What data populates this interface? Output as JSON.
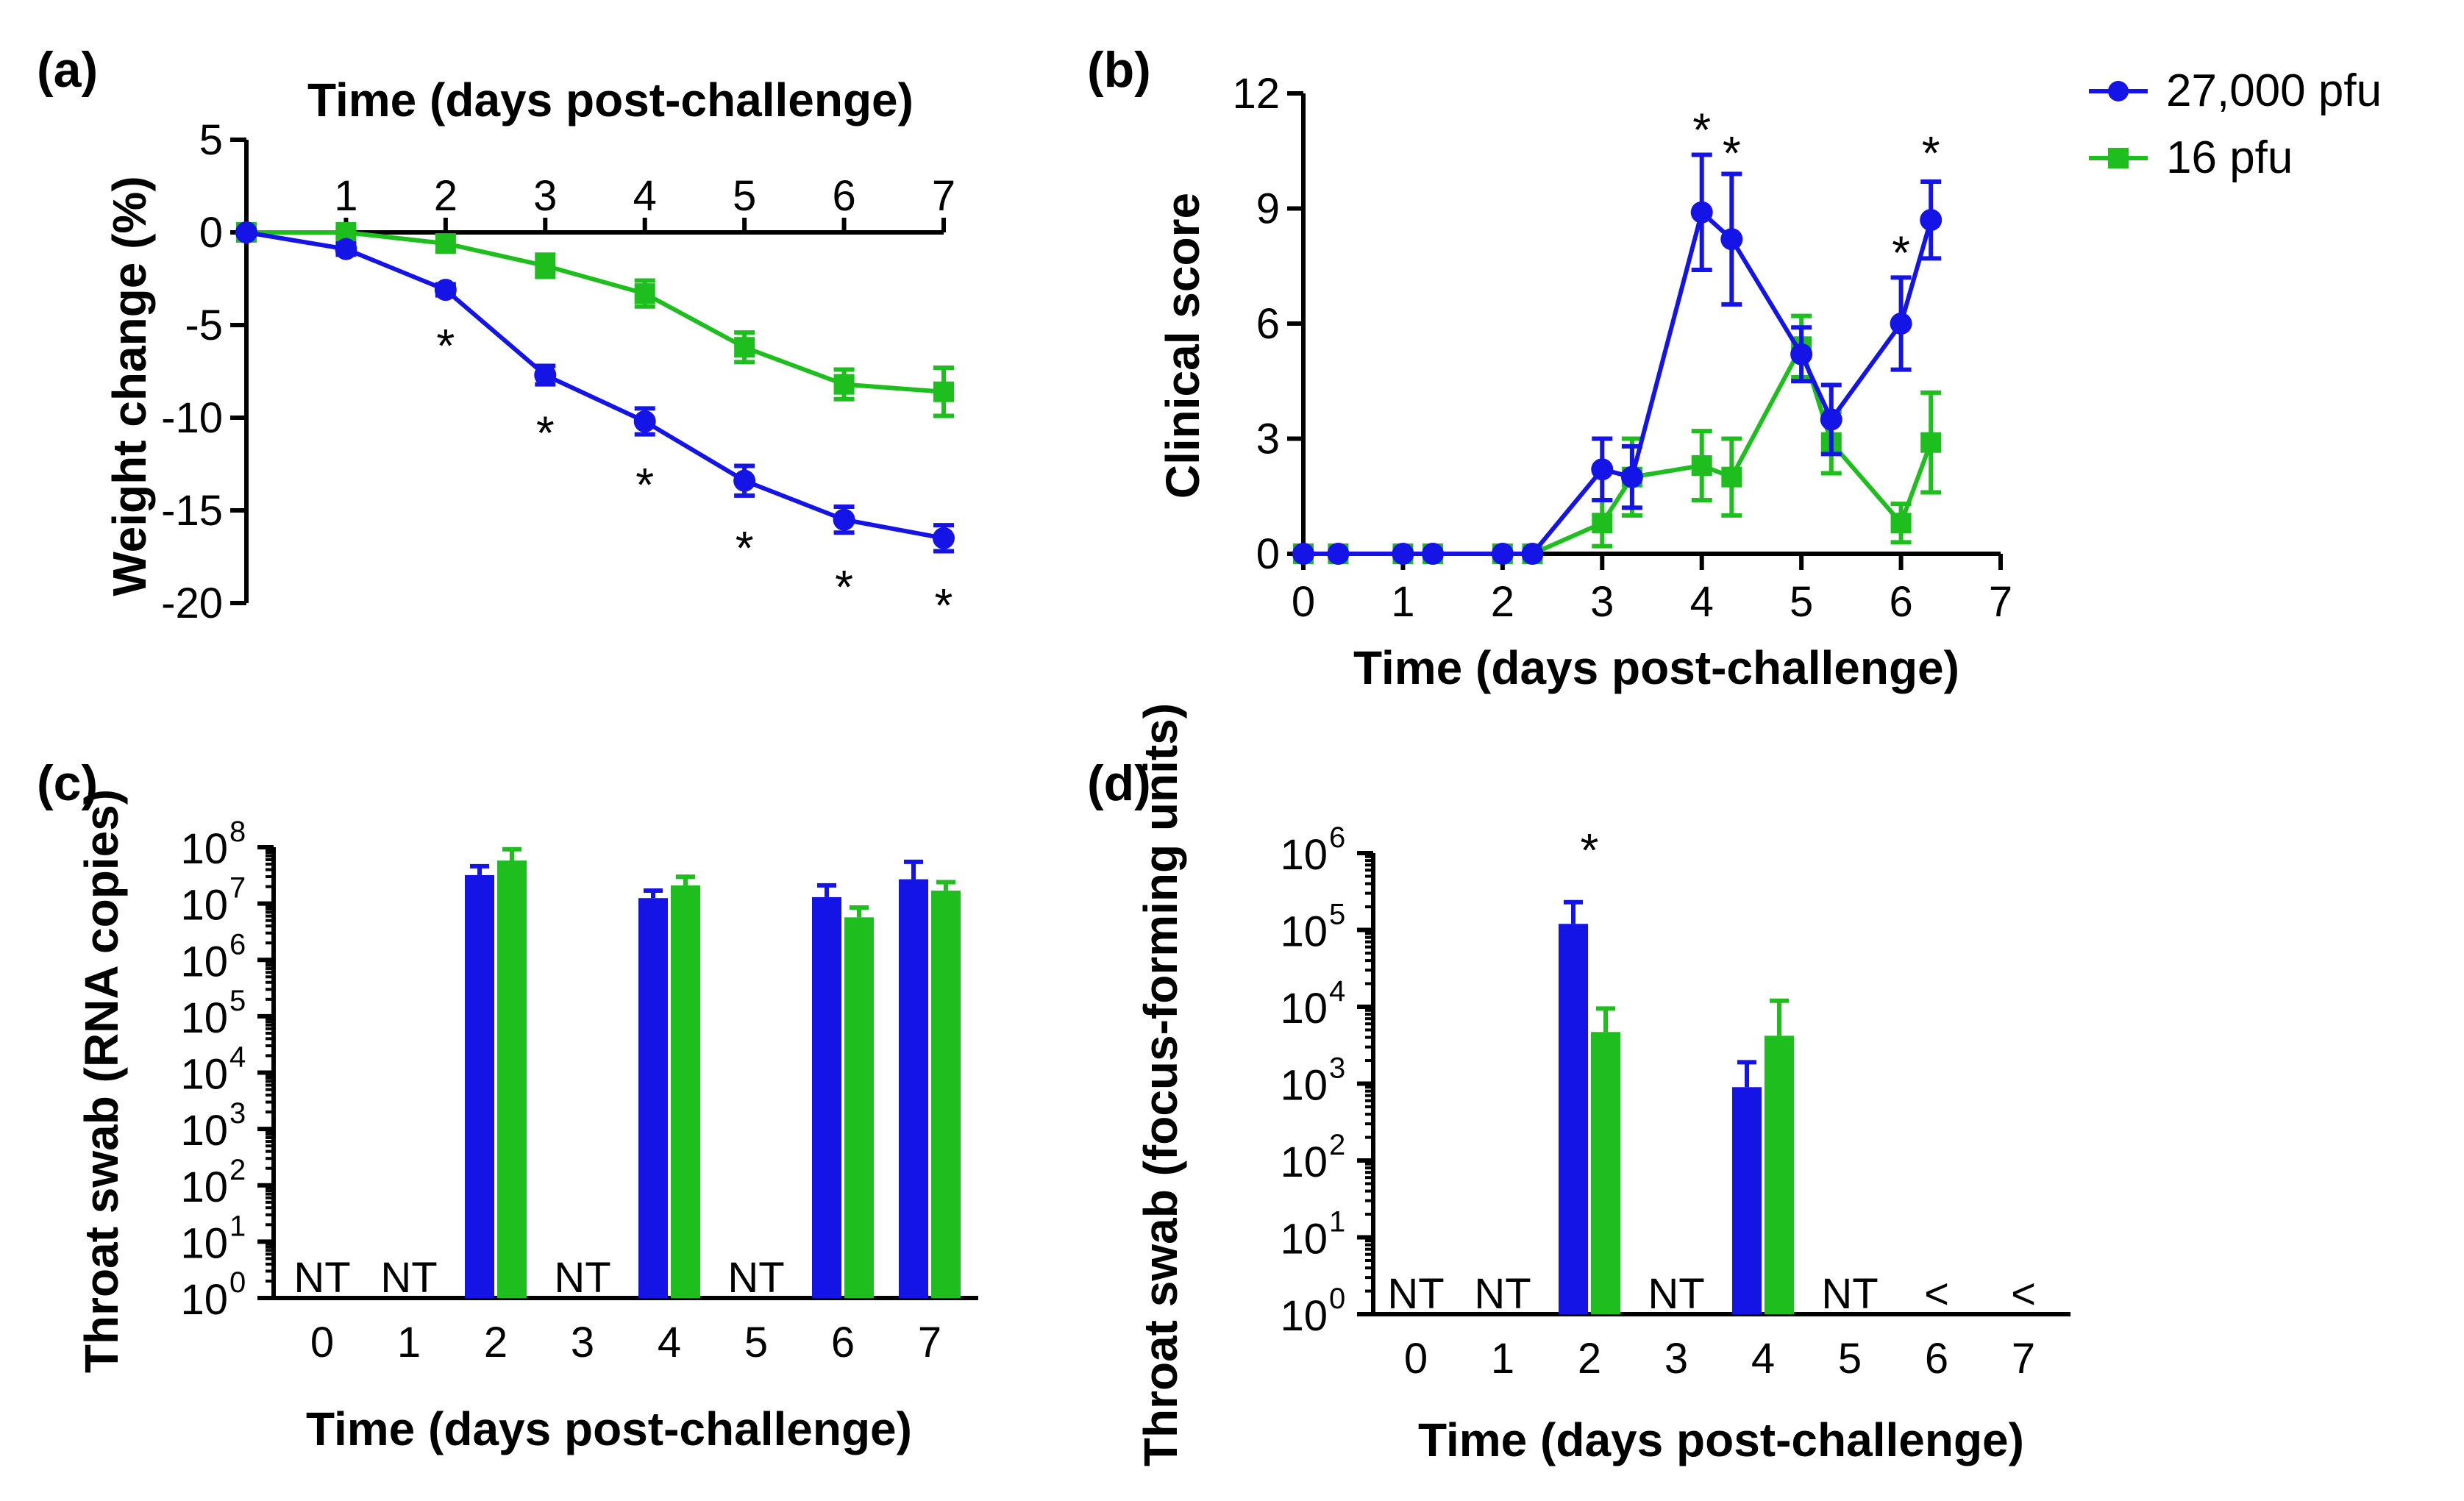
{
  "colors": {
    "high_dose": "#1414e6",
    "low_dose": "#1ebe1e",
    "axis": "#000000"
  },
  "legend": [
    {
      "label": "27,000 pfu",
      "marker": "circle",
      "color": "#1414e6"
    },
    {
      "label": "16 pfu",
      "marker": "square",
      "color": "#1ebe1e"
    }
  ],
  "chart_data": [
    {
      "panel": "(a)",
      "type": "line",
      "title": "",
      "xlabel": "Time (days post-challenge)",
      "ylabel": "Weight change (%)",
      "x_axis_position": "top",
      "xlim": [
        0,
        7
      ],
      "ylim": [
        -20,
        5
      ],
      "xticks": [
        "1",
        "2",
        "3",
        "4",
        "5",
        "6",
        "7"
      ],
      "yticks": [
        "5",
        "0",
        "-5",
        "-10",
        "-15",
        "-20"
      ],
      "series": [
        {
          "name": "27,000 pfu",
          "x": [
            0,
            1,
            2,
            3,
            4,
            5,
            6,
            7
          ],
          "y": [
            0,
            -0.9,
            -3.1,
            -7.7,
            -10.2,
            -13.4,
            -15.5,
            -16.5
          ],
          "err": [
            0,
            0.3,
            0.3,
            0.5,
            0.7,
            0.8,
            0.7,
            0.7
          ],
          "marker": "circle"
        },
        {
          "name": "16 pfu",
          "x": [
            0,
            1,
            2,
            3,
            4,
            5,
            6,
            7
          ],
          "y": [
            0,
            0,
            -0.6,
            -1.8,
            -3.3,
            -6.2,
            -8.2,
            -8.6
          ],
          "err": [
            0,
            0.2,
            0.4,
            0.6,
            0.7,
            0.8,
            0.8,
            1.3
          ],
          "marker": "square"
        }
      ],
      "annotations": [
        {
          "text": "*",
          "x": 2,
          "y": -5.8
        },
        {
          "text": "*",
          "x": 3,
          "y": -10.5
        },
        {
          "text": "*",
          "x": 4,
          "y": -13.3
        },
        {
          "text": "*",
          "x": 5,
          "y": -16.7
        },
        {
          "text": "*",
          "x": 6,
          "y": -18.8
        },
        {
          "text": "*",
          "x": 7,
          "y": -19.8
        }
      ]
    },
    {
      "panel": "(b)",
      "type": "line",
      "title": "",
      "xlabel": "Time (days post-challenge)",
      "ylabel": "Clinical score",
      "xlim": [
        0,
        7
      ],
      "ylim": [
        0,
        12
      ],
      "xticks": [
        "0",
        "1",
        "2",
        "3",
        "4",
        "5",
        "6",
        "7"
      ],
      "yticks": [
        "0",
        "3",
        "6",
        "9",
        "12"
      ],
      "series": [
        {
          "name": "27,000 pfu",
          "x": [
            0,
            0.35,
            1,
            1.3,
            2,
            2.3,
            3,
            3.3,
            4,
            4.3,
            5,
            5.3,
            6,
            6.3
          ],
          "y": [
            0,
            0,
            0,
            0,
            0,
            0,
            2.2,
            2.0,
            8.9,
            8.2,
            5.2,
            3.5,
            6.0,
            8.7
          ],
          "err": [
            0,
            0,
            0,
            0,
            0,
            0,
            0.8,
            0.8,
            1.5,
            1.7,
            0.7,
            0.9,
            1.2,
            1.0
          ],
          "marker": "circle"
        },
        {
          "name": "16 pfu",
          "x": [
            0,
            0.35,
            1,
            1.3,
            2,
            2.3,
            3,
            3.3,
            4,
            4.3,
            5,
            5.3,
            6,
            6.3
          ],
          "y": [
            0,
            0,
            0,
            0,
            0,
            0,
            0.8,
            2.0,
            2.3,
            2.0,
            5.4,
            2.9,
            0.8,
            2.9
          ],
          "err": [
            0,
            0,
            0,
            0,
            0,
            0,
            0.6,
            1.0,
            0.9,
            1.0,
            0.8,
            0.8,
            0.5,
            1.3
          ],
          "marker": "square"
        }
      ],
      "annotations": [
        {
          "text": "*",
          "x": 4,
          "y": 11.2
        },
        {
          "text": "*",
          "x": 4.3,
          "y": 10.6
        },
        {
          "text": "*",
          "x": 6,
          "y": 8.0
        },
        {
          "text": "*",
          "x": 6.3,
          "y": 10.6
        }
      ]
    },
    {
      "panel": "(c)",
      "type": "bar",
      "title": "",
      "xlabel": "Time (days post-challenge)",
      "ylabel": "Throat swab (RNA copies)",
      "y_scale": "log10",
      "ylim_exp": [
        0,
        8
      ],
      "ytick_exponents": [
        "0",
        "1",
        "2",
        "3",
        "4",
        "5",
        "6",
        "7",
        "8"
      ],
      "categories": [
        "0",
        "1",
        "2",
        "3",
        "4",
        "5",
        "6",
        "7"
      ],
      "series": [
        {
          "name": "27,000 pfu",
          "values": [
            null,
            null,
            32000000,
            null,
            12500000,
            null,
            13000000,
            27000000
          ],
          "err_upper": [
            null,
            null,
            46000000,
            null,
            17000000,
            null,
            21000000,
            55000000
          ]
        },
        {
          "name": "16 pfu",
          "values": [
            null,
            null,
            58000000,
            null,
            21000000,
            null,
            5700000,
            17000000
          ],
          "err_upper": [
            null,
            null,
            92000000,
            null,
            30000000,
            null,
            8500000,
            24000000
          ]
        }
      ],
      "category_labels": [
        "NT",
        "NT",
        "",
        "NT",
        "",
        "NT",
        "",
        ""
      ]
    },
    {
      "panel": "(d)",
      "type": "bar",
      "title": "",
      "xlabel": "Time (days post-challenge)",
      "ylabel": "Throat swab (focus-forming units)",
      "y_scale": "log10",
      "ylim_exp": [
        0,
        6
      ],
      "ytick_exponents": [
        "0",
        "1",
        "2",
        "3",
        "4",
        "5",
        "6"
      ],
      "categories": [
        "0",
        "1",
        "2",
        "3",
        "4",
        "5",
        "6",
        "7"
      ],
      "series": [
        {
          "name": "27,000 pfu",
          "values": [
            null,
            null,
            120000,
            null,
            900,
            null,
            null,
            null
          ],
          "err_upper": [
            null,
            null,
            230000,
            null,
            1900,
            null,
            null,
            null
          ]
        },
        {
          "name": "16 pfu",
          "values": [
            null,
            null,
            4700,
            null,
            4200,
            null,
            null,
            null
          ],
          "err_upper": [
            null,
            null,
            9500,
            null,
            12000,
            null,
            null,
            null
          ]
        }
      ],
      "category_labels": [
        "NT",
        "NT",
        "",
        "NT",
        "",
        "NT",
        "<",
        "<"
      ],
      "annotations": [
        {
          "text": "*",
          "category": "2"
        }
      ]
    }
  ],
  "panel_labels": [
    "(a)",
    "(b)",
    "(c)",
    "(d)"
  ],
  "log_tick_base": "10"
}
